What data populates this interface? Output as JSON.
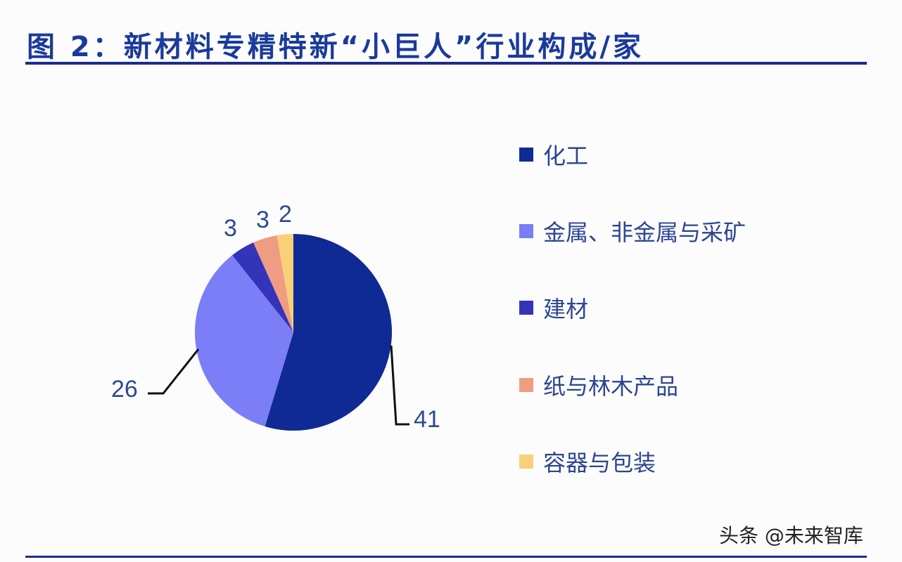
{
  "title": "图 2：新材料专精特新“小巨人”行业构成/家",
  "watermark": "头条 @未来智库",
  "chart_data": {
    "type": "pie",
    "title": "图 2：新材料专精特新“小巨人”行业构成/家",
    "unit": "家",
    "categories": [
      "化工",
      "金属、非金属与采矿",
      "建材",
      "纸与林木产品",
      "容器与包装"
    ],
    "values": [
      41,
      26,
      3,
      3,
      2
    ],
    "colors": [
      "#0f2a94",
      "#7b7ef7",
      "#3434b8",
      "#ef9c82",
      "#f9cf78"
    ],
    "data_labels": [
      "41",
      "26",
      "3",
      "3",
      "2"
    ],
    "start_angle": "12 o'clock, clockwise",
    "legend_position": "right"
  },
  "legend": {
    "items": [
      {
        "label": "化工",
        "color": "#0f2a94"
      },
      {
        "label": "金属、非金属与采矿",
        "color": "#7b7ef7"
      },
      {
        "label": "建材",
        "color": "#3434b8"
      },
      {
        "label": "纸与林木产品",
        "color": "#ef9c82"
      },
      {
        "label": "容器与包装",
        "color": "#f9cf78"
      }
    ]
  },
  "labels": {
    "chem": "41",
    "metal": "26",
    "build": "3",
    "paper": "3",
    "container": "2"
  }
}
